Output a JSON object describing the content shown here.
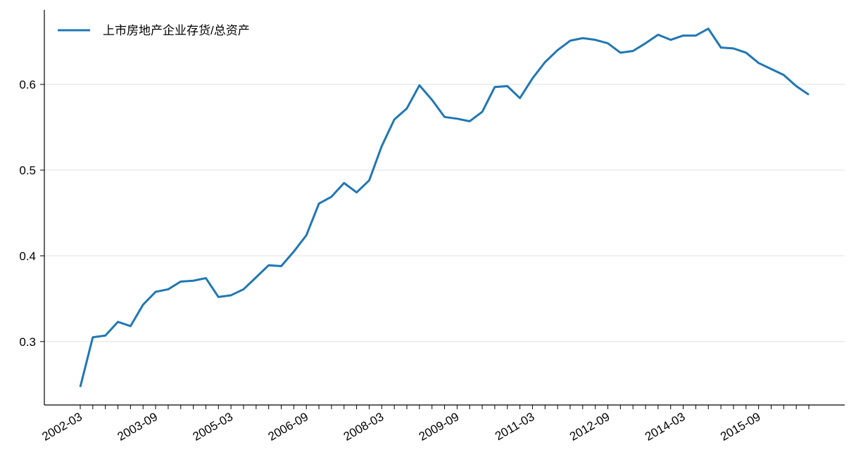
{
  "chart_data": {
    "type": "line",
    "categories": [
      "2002-03",
      null,
      null,
      null,
      null,
      null,
      "2003-09",
      null,
      null,
      null,
      null,
      null,
      "2005-03",
      null,
      null,
      null,
      null,
      null,
      "2006-09",
      null,
      null,
      null,
      null,
      null,
      "2008-03",
      null,
      null,
      null,
      null,
      null,
      "2009-09",
      null,
      null,
      null,
      null,
      null,
      "2011-03",
      null,
      null,
      null,
      null,
      null,
      "2012-09",
      null,
      null,
      null,
      null,
      null,
      "2014-03",
      null,
      null,
      null,
      null,
      null,
      "2015-09",
      null,
      null,
      null,
      null
    ],
    "series": [
      {
        "name": "上市房地产企业存货/总资产",
        "color": "#1f77b4",
        "values": [
          0.247,
          0.305,
          0.307,
          0.323,
          0.318,
          0.343,
          0.358,
          0.361,
          0.37,
          0.371,
          0.374,
          0.352,
          0.354,
          0.361,
          0.375,
          0.389,
          0.388,
          0.405,
          0.424,
          0.461,
          0.469,
          0.485,
          0.474,
          0.488,
          0.528,
          0.559,
          0.572,
          0.599,
          0.582,
          0.562,
          0.56,
          0.557,
          0.568,
          0.597,
          0.598,
          0.584,
          0.607,
          0.626,
          0.64,
          0.651,
          0.654,
          0.652,
          0.648,
          0.637,
          0.639,
          0.648,
          0.658,
          0.652,
          0.657,
          0.657,
          0.665,
          0.643,
          0.642,
          0.637,
          0.625,
          0.618,
          0.611,
          0.598,
          0.588
        ]
      }
    ],
    "ylim": [
      0.226,
      0.687
    ],
    "yticks": [
      0.3,
      0.4,
      0.5,
      0.6
    ],
    "grid": true,
    "legend": "upper-left"
  }
}
